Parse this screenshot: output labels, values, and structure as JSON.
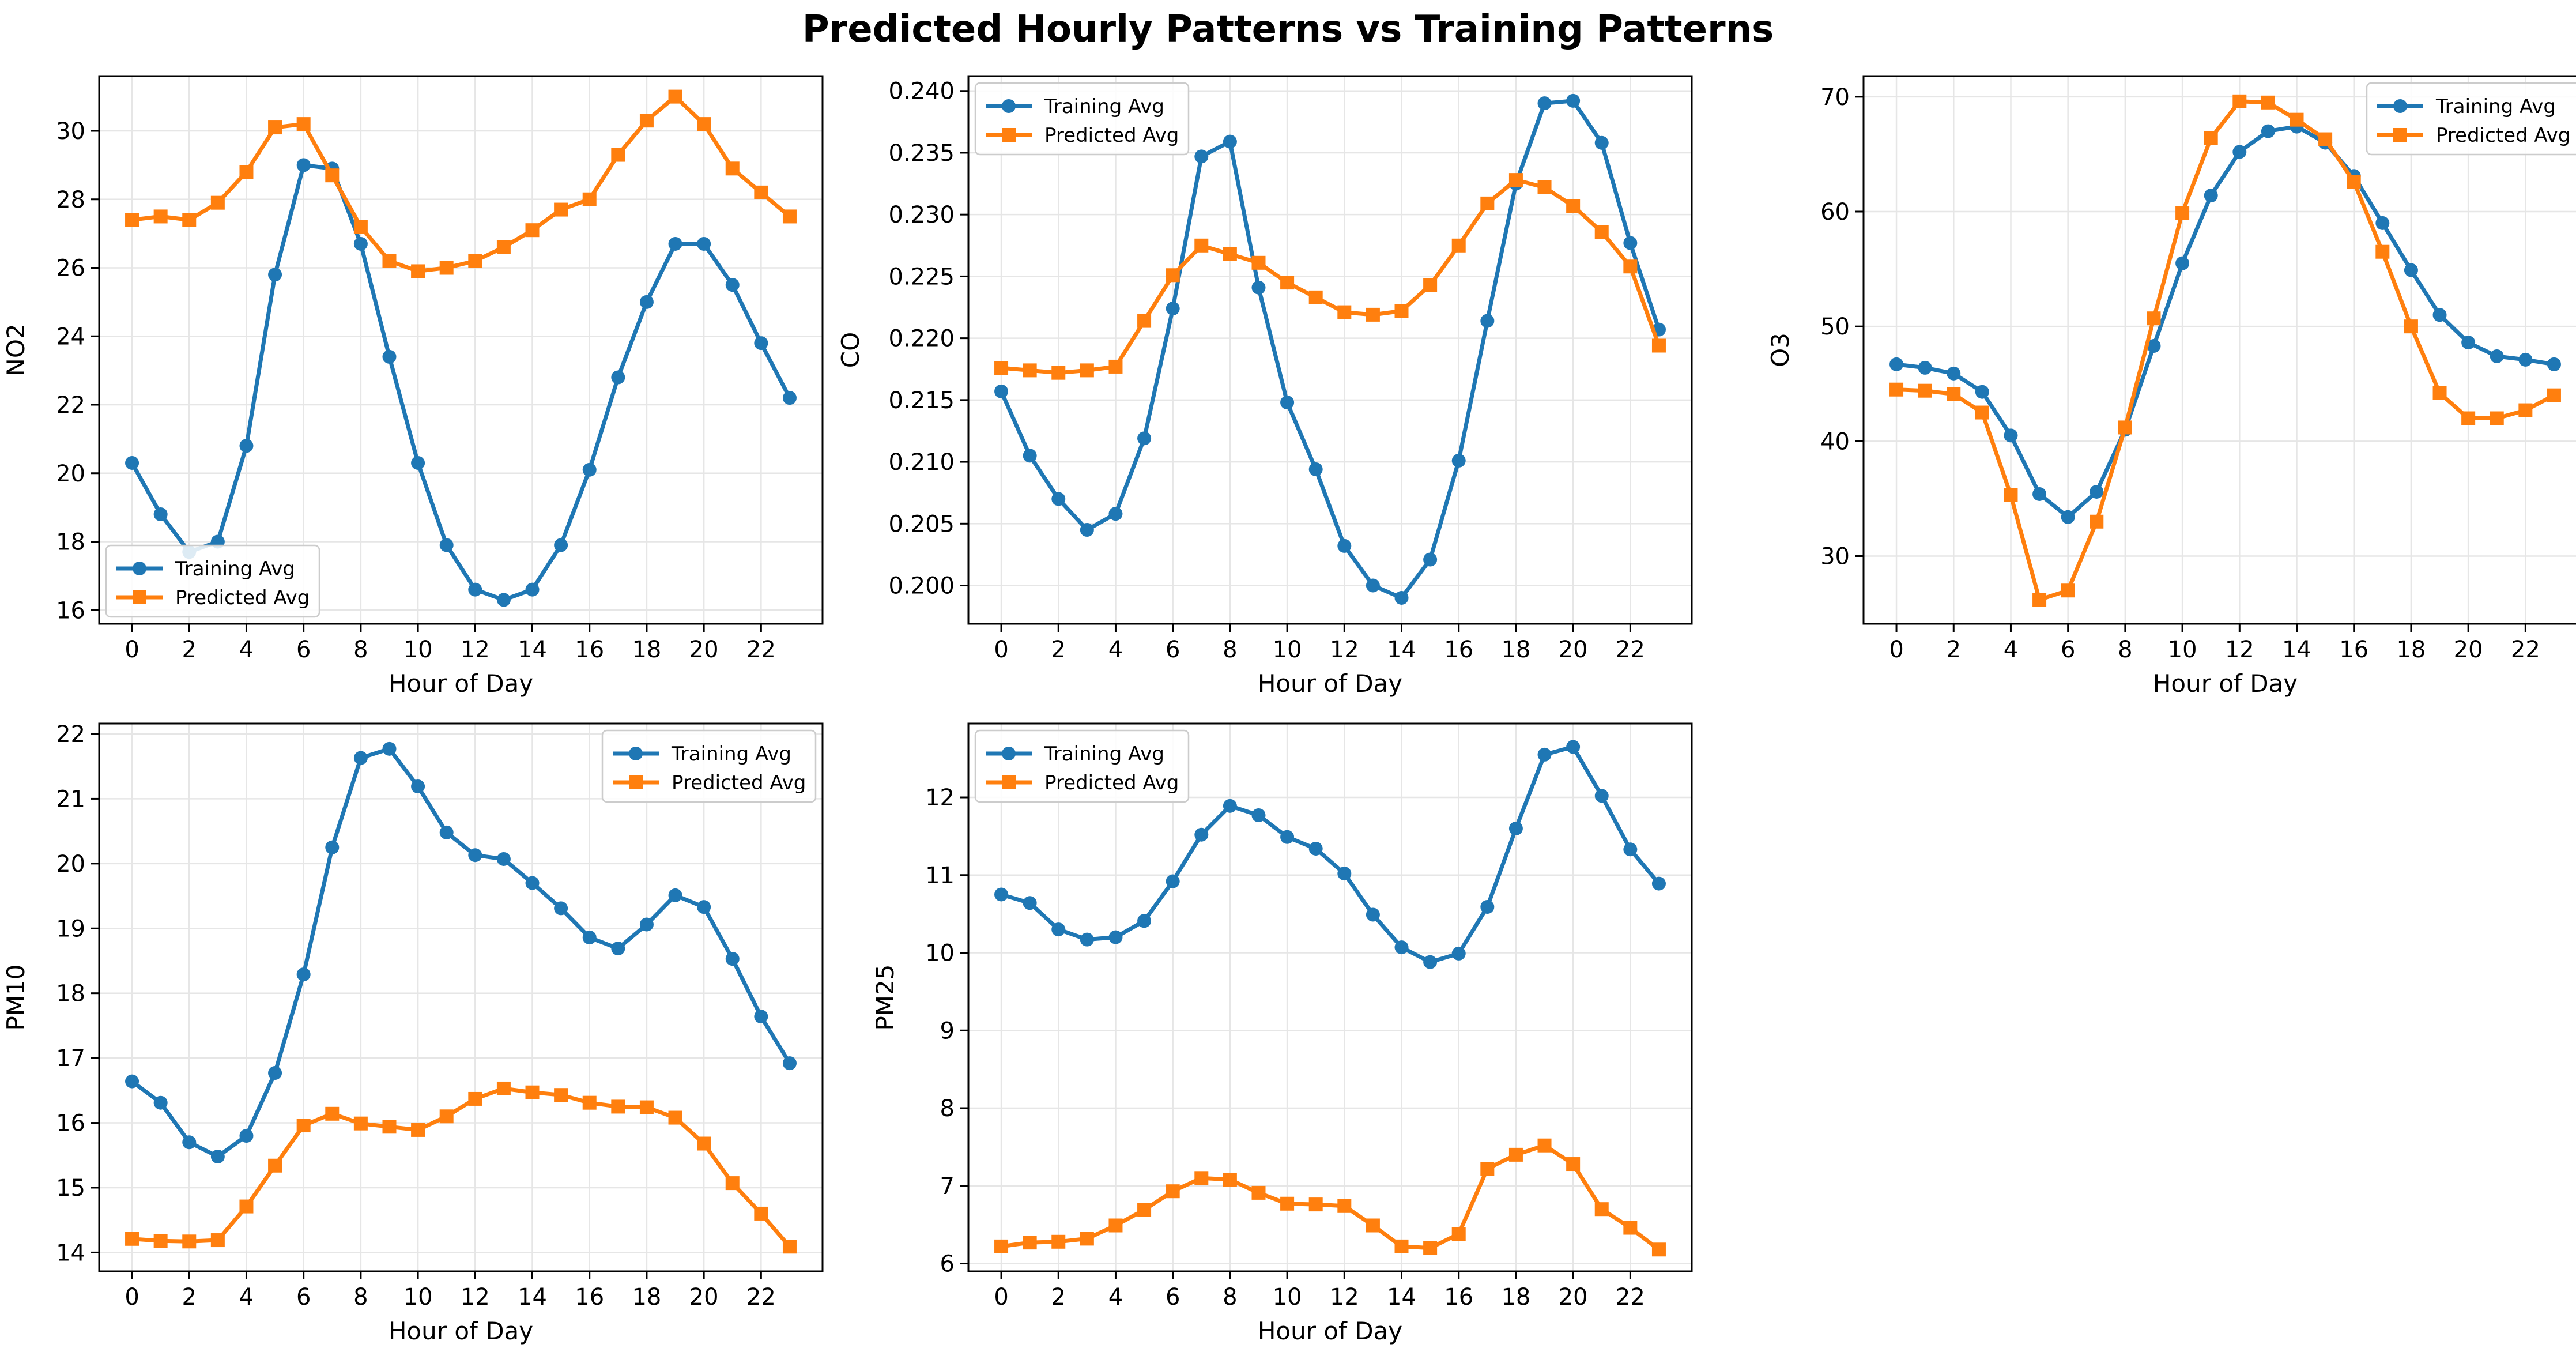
{
  "figure": {
    "title": "Predicted Hourly Patterns vs Training Patterns",
    "series_colors": {
      "Training Avg": "#1f77b4",
      "Predicted Avg": "#ff7f0e"
    }
  },
  "chart_data": [
    {
      "type": "line",
      "title": "",
      "xlabel": "Hour of Day",
      "ylabel": "NO2",
      "x": [
        0,
        1,
        2,
        3,
        4,
        5,
        6,
        7,
        8,
        9,
        10,
        11,
        12,
        13,
        14,
        15,
        16,
        17,
        18,
        19,
        20,
        21,
        22,
        23
      ],
      "xticks": [
        0,
        2,
        4,
        6,
        8,
        10,
        12,
        14,
        16,
        18,
        20,
        22
      ],
      "xtick_labels": [
        "0",
        "2",
        "4",
        "6",
        "8",
        "10",
        "12",
        "14",
        "16",
        "18",
        "20",
        "22"
      ],
      "ylim": [
        15.6,
        31.6
      ],
      "yticks": [
        16,
        18,
        20,
        22,
        24,
        26,
        28,
        30
      ],
      "ytick_labels": [
        "16",
        "18",
        "20",
        "22",
        "24",
        "26",
        "28",
        "30"
      ],
      "grid": true,
      "legend_position": "lower-left",
      "series": [
        {
          "name": "Training Avg",
          "marker": "circle",
          "values": [
            20.3,
            18.8,
            17.7,
            18.0,
            20.8,
            25.8,
            29.0,
            28.9,
            26.7,
            23.4,
            20.3,
            17.9,
            16.6,
            16.3,
            16.6,
            17.9,
            20.1,
            22.8,
            25.0,
            26.7,
            26.7,
            25.5,
            23.8,
            22.2
          ]
        },
        {
          "name": "Predicted Avg",
          "marker": "square",
          "values": [
            27.4,
            27.5,
            27.4,
            27.9,
            28.8,
            30.1,
            30.2,
            28.7,
            27.2,
            26.2,
            25.9,
            26.0,
            26.2,
            26.6,
            27.1,
            27.7,
            28.0,
            29.3,
            30.3,
            31.0,
            30.2,
            28.9,
            28.2,
            27.5
          ]
        }
      ]
    },
    {
      "type": "line",
      "title": "",
      "xlabel": "Hour of Day",
      "ylabel": "CO",
      "x": [
        0,
        1,
        2,
        3,
        4,
        5,
        6,
        7,
        8,
        9,
        10,
        11,
        12,
        13,
        14,
        15,
        16,
        17,
        18,
        19,
        20,
        21,
        22,
        23
      ],
      "xticks": [
        0,
        2,
        4,
        6,
        8,
        10,
        12,
        14,
        16,
        18,
        20,
        22
      ],
      "xtick_labels": [
        "0",
        "2",
        "4",
        "6",
        "8",
        "10",
        "12",
        "14",
        "16",
        "18",
        "20",
        "22"
      ],
      "ylim": [
        0.1969,
        0.2412
      ],
      "yticks": [
        0.2,
        0.205,
        0.21,
        0.215,
        0.22,
        0.225,
        0.23,
        0.235,
        0.24
      ],
      "ytick_labels": [
        "0.200",
        "0.205",
        "0.210",
        "0.215",
        "0.220",
        "0.225",
        "0.230",
        "0.235",
        "0.240"
      ],
      "grid": true,
      "legend_position": "upper-left",
      "series": [
        {
          "name": "Training Avg",
          "marker": "circle",
          "values": [
            0.2157,
            0.2105,
            0.207,
            0.2045,
            0.2058,
            0.2119,
            0.2224,
            0.2347,
            0.2359,
            0.2241,
            0.2148,
            0.2094,
            0.2032,
            0.2,
            0.199,
            0.2021,
            0.2101,
            0.2214,
            0.2325,
            0.239,
            0.2392,
            0.2358,
            0.2277,
            0.2207
          ]
        },
        {
          "name": "Predicted Avg",
          "marker": "square",
          "values": [
            0.2176,
            0.2174,
            0.2172,
            0.2174,
            0.2177,
            0.2214,
            0.2251,
            0.2275,
            0.2268,
            0.2261,
            0.2245,
            0.2233,
            0.2221,
            0.2219,
            0.2222,
            0.2243,
            0.2275,
            0.2309,
            0.2328,
            0.2322,
            0.2307,
            0.2286,
            0.2258,
            0.2194
          ]
        }
      ]
    },
    {
      "type": "line",
      "title": "",
      "xlabel": "Hour of Day",
      "ylabel": "O3",
      "x": [
        0,
        1,
        2,
        3,
        4,
        5,
        6,
        7,
        8,
        9,
        10,
        11,
        12,
        13,
        14,
        15,
        16,
        17,
        18,
        19,
        20,
        21,
        22,
        23
      ],
      "xticks": [
        0,
        2,
        4,
        6,
        8,
        10,
        12,
        14,
        16,
        18,
        20,
        22
      ],
      "xtick_labels": [
        "0",
        "2",
        "4",
        "6",
        "8",
        "10",
        "12",
        "14",
        "16",
        "18",
        "20",
        "22"
      ],
      "ylim": [
        24.1,
        71.8
      ],
      "yticks": [
        30,
        40,
        50,
        60,
        70
      ],
      "ytick_labels": [
        "30",
        "40",
        "50",
        "60",
        "70"
      ],
      "grid": true,
      "legend_position": "upper-right",
      "series": [
        {
          "name": "Training Avg",
          "marker": "circle",
          "values": [
            46.7,
            46.4,
            45.9,
            44.3,
            40.5,
            35.4,
            33.4,
            35.6,
            41.0,
            48.3,
            55.5,
            61.4,
            65.2,
            67.0,
            67.4,
            66.0,
            63.1,
            59.0,
            54.9,
            51.0,
            48.6,
            47.4,
            47.1,
            46.7
          ]
        },
        {
          "name": "Predicted Avg",
          "marker": "square",
          "values": [
            44.5,
            44.4,
            44.1,
            42.5,
            35.3,
            26.2,
            27.0,
            33.0,
            41.2,
            50.7,
            59.9,
            66.4,
            69.6,
            69.5,
            68.0,
            66.3,
            62.6,
            56.5,
            50.0,
            44.2,
            42.0,
            42.0,
            42.7,
            44.0
          ]
        }
      ]
    },
    {
      "type": "line",
      "title": "",
      "xlabel": "Hour of Day",
      "ylabel": "PM10",
      "x": [
        0,
        1,
        2,
        3,
        4,
        5,
        6,
        7,
        8,
        9,
        10,
        11,
        12,
        13,
        14,
        15,
        16,
        17,
        18,
        19,
        20,
        21,
        22,
        23
      ],
      "xticks": [
        0,
        2,
        4,
        6,
        8,
        10,
        12,
        14,
        16,
        18,
        20,
        22
      ],
      "xtick_labels": [
        "0",
        "2",
        "4",
        "6",
        "8",
        "10",
        "12",
        "14",
        "16",
        "18",
        "20",
        "22"
      ],
      "ylim": [
        13.71,
        22.16
      ],
      "yticks": [
        14,
        15,
        16,
        17,
        18,
        19,
        20,
        21,
        22
      ],
      "ytick_labels": [
        "14",
        "15",
        "16",
        "17",
        "18",
        "19",
        "20",
        "21",
        "22"
      ],
      "grid": true,
      "legend_position": "upper-right",
      "series": [
        {
          "name": "Training Avg",
          "marker": "circle",
          "values": [
            16.64,
            16.31,
            15.7,
            15.48,
            15.8,
            16.77,
            18.29,
            20.25,
            21.63,
            21.77,
            21.19,
            20.48,
            20.13,
            20.07,
            19.7,
            19.31,
            18.86,
            18.69,
            19.06,
            19.51,
            19.33,
            18.53,
            17.64,
            16.92
          ]
        },
        {
          "name": "Predicted Avg",
          "marker": "square",
          "values": [
            14.21,
            14.18,
            14.17,
            14.19,
            14.71,
            15.34,
            15.96,
            16.14,
            15.99,
            15.94,
            15.89,
            16.1,
            16.37,
            16.53,
            16.47,
            16.43,
            16.31,
            16.25,
            16.24,
            16.08,
            15.68,
            15.07,
            14.6,
            14.09
          ]
        }
      ]
    },
    {
      "type": "line",
      "title": "",
      "xlabel": "Hour of Day",
      "ylabel": "PM25",
      "x": [
        0,
        1,
        2,
        3,
        4,
        5,
        6,
        7,
        8,
        9,
        10,
        11,
        12,
        13,
        14,
        15,
        16,
        17,
        18,
        19,
        20,
        21,
        22,
        23
      ],
      "xticks": [
        0,
        2,
        4,
        6,
        8,
        10,
        12,
        14,
        16,
        18,
        20,
        22
      ],
      "xtick_labels": [
        "0",
        "2",
        "4",
        "6",
        "8",
        "10",
        "12",
        "14",
        "16",
        "18",
        "20",
        "22"
      ],
      "ylim": [
        5.9,
        12.95
      ],
      "yticks": [
        6,
        7,
        8,
        9,
        10,
        11,
        12
      ],
      "ytick_labels": [
        "6",
        "7",
        "8",
        "9",
        "10",
        "11",
        "12"
      ],
      "grid": true,
      "legend_position": "upper-left",
      "series": [
        {
          "name": "Training Avg",
          "marker": "circle",
          "values": [
            10.75,
            10.64,
            10.3,
            10.17,
            10.2,
            10.41,
            10.92,
            11.52,
            11.89,
            11.77,
            11.49,
            11.34,
            11.02,
            10.49,
            10.07,
            9.88,
            9.99,
            10.59,
            11.6,
            12.55,
            12.65,
            12.02,
            11.33,
            10.89
          ]
        },
        {
          "name": "Predicted Avg",
          "marker": "square",
          "values": [
            6.22,
            6.27,
            6.28,
            6.32,
            6.49,
            6.69,
            6.93,
            7.1,
            7.08,
            6.91,
            6.77,
            6.76,
            6.74,
            6.49,
            6.22,
            6.2,
            6.38,
            7.22,
            7.4,
            7.52,
            7.28,
            6.7,
            6.46,
            6.18
          ]
        }
      ]
    }
  ]
}
